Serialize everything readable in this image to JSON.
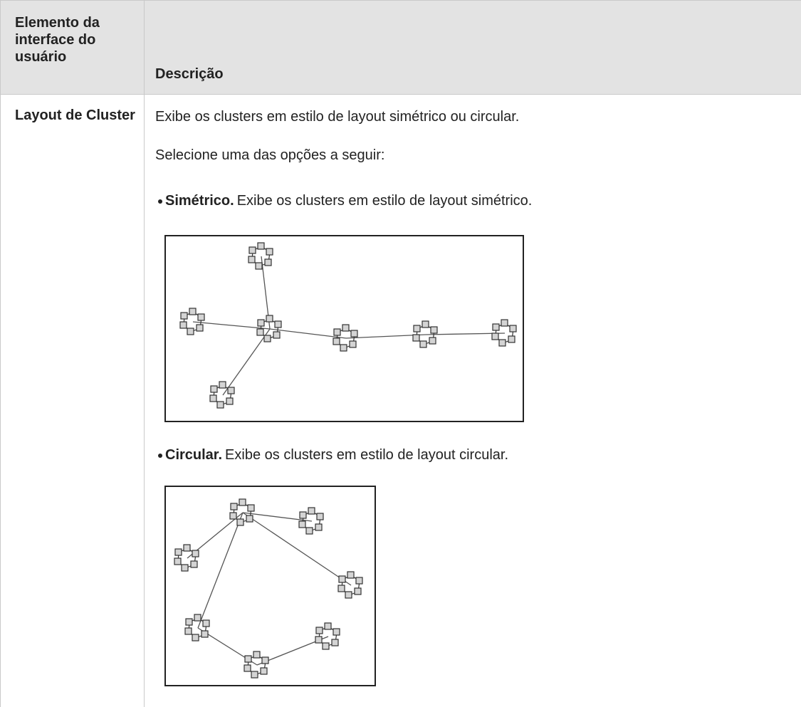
{
  "table": {
    "headers": [
      "Elemento da interface do usuário",
      "Descrição"
    ],
    "rows": [
      {
        "element": "Layout de Cluster",
        "description": {
          "intro": "Exibe os clusters em estilo de layout simétrico ou circular.",
          "instruction": "Selecione uma das opções a seguir:",
          "options": [
            {
              "name": "Simétrico.",
              "text": "Exibe os clusters em estilo de layout simétrico."
            },
            {
              "name": "Circular.",
              "text": "Exibe os clusters em estilo de layout circular."
            }
          ]
        }
      }
    ]
  }
}
